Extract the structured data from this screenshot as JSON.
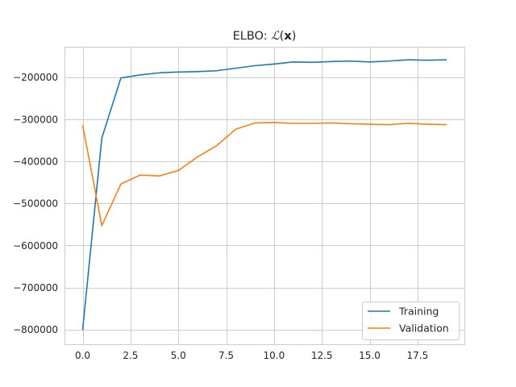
{
  "chart_data": {
    "type": "line",
    "title": "ELBO: ℒ(x)",
    "title_prefix": "ELBO: ",
    "title_script": "ℒ",
    "title_open": "(",
    "title_var": "x",
    "title_close": ")",
    "xlabel": "",
    "ylabel": "",
    "xlim": [
      -0.95,
      19.95
    ],
    "ylim": [
      -835000,
      -128000
    ],
    "x_ticks": [
      0,
      2.5,
      5,
      7.5,
      10,
      12.5,
      15,
      17.5
    ],
    "x_tick_labels": [
      "0.0",
      "2.5",
      "5.0",
      "7.5",
      "10.0",
      "12.5",
      "15.0",
      "17.5"
    ],
    "y_ticks": [
      -800000,
      -700000,
      -600000,
      -500000,
      -400000,
      -300000,
      -200000
    ],
    "y_tick_labels": [
      "−800000",
      "−700000",
      "−600000",
      "−500000",
      "−400000",
      "−300000",
      "−200000"
    ],
    "grid": true,
    "legend_position": "bottom-right",
    "x": [
      0,
      1,
      2,
      3,
      4,
      5,
      6,
      7,
      8,
      9,
      10,
      11,
      12,
      13,
      14,
      15,
      16,
      17,
      18,
      19
    ],
    "series": [
      {
        "name": "Training",
        "color": "#1f77b4",
        "values": [
          -800000,
          -345000,
          -202000,
          -195000,
          -190000,
          -188000,
          -187000,
          -185000,
          -179000,
          -173000,
          -169000,
          -164000,
          -165000,
          -163000,
          -162000,
          -164000,
          -162000,
          -159000,
          -160000,
          -159000
        ]
      },
      {
        "name": "Validation",
        "color": "#ff7f0e",
        "values": [
          -315000,
          -553000,
          -454000,
          -433000,
          -435000,
          -422000,
          -390000,
          -363000,
          -324000,
          -309000,
          -308000,
          -310000,
          -310000,
          -309000,
          -311000,
          -312000,
          -313000,
          -310000,
          -312000,
          -313000
        ]
      }
    ]
  }
}
